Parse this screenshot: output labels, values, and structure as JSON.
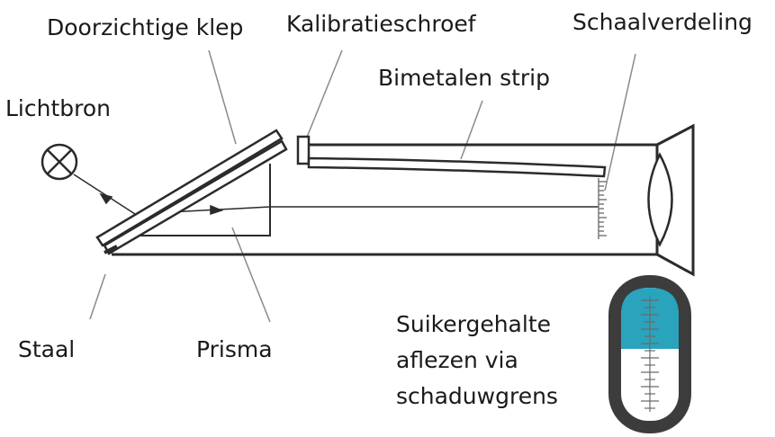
{
  "labels": {
    "doorzichtige_klep": "Doorzichtige klep",
    "kalibratieschroef": "Kalibratieschroef",
    "schaalverdeling": "Schaalverdeling",
    "bimetalen_strip": "Bimetalen strip",
    "lichtbron": "Lichtbron",
    "staal": "Staal",
    "prisma": "Prisma",
    "reading_line1": "Suikergehalte",
    "reading_line2": "aflezen via",
    "reading_line3": "schaduwgrens"
  },
  "colors": {
    "outline": "#2b2b2b",
    "leader": "#8a8a8a",
    "tube": "#4d4d4d",
    "shade": "#2aa3bd",
    "scale": "#7a7a7a"
  }
}
